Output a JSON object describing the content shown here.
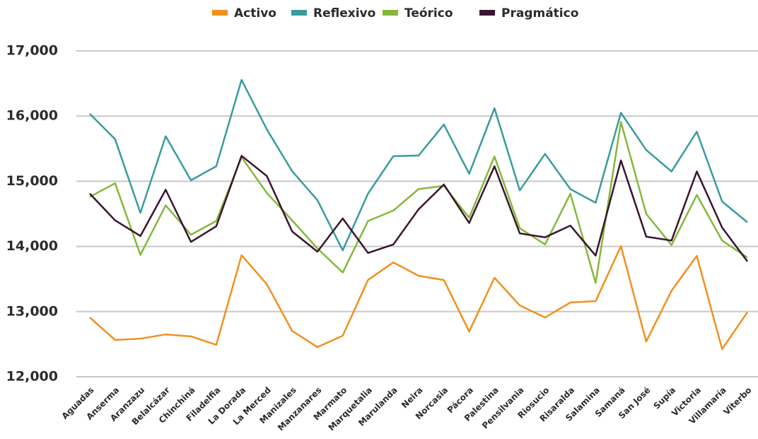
{
  "chart_data": {
    "type": "line",
    "categories": [
      "Aguadas",
      "Anserma",
      "Aranzazu",
      "Belalcázar",
      "Chinchiná",
      "Filadelfia",
      "La Dorada",
      "La Merced",
      "Manizales",
      "Manzanares",
      "Marmato",
      "Marquetalia",
      "Marulanda",
      "Neira",
      "Norcasia",
      "Pácora",
      "Palestina",
      "Pensilvania",
      "Riosucio",
      "Risaralda",
      "Salamina",
      "Samaná",
      "San José",
      "Supía",
      "Victoria",
      "Villamaría",
      "Viterbo"
    ],
    "series": [
      {
        "name": "Activo",
        "color": "#f0901e",
        "values": [
          12910,
          12565,
          12585,
          12650,
          12620,
          12490,
          13865,
          13420,
          12705,
          12455,
          12630,
          13485,
          13755,
          13550,
          13485,
          12695,
          13520,
          13095,
          12910,
          13140,
          13160,
          14005,
          12540,
          13320,
          13855,
          12425,
          12990
        ]
      },
      {
        "name": "Reflexivo",
        "color": "#3a9b9e",
        "values": [
          16035,
          15645,
          14515,
          15690,
          15015,
          15230,
          16555,
          15795,
          15155,
          14710,
          13940,
          14810,
          15385,
          15395,
          15870,
          15115,
          16120,
          14860,
          15420,
          14880,
          14670,
          16050,
          15480,
          15150,
          15760,
          14690,
          14370
        ]
      },
      {
        "name": "Teórico",
        "color": "#84b83a",
        "values": [
          14760,
          14970,
          13870,
          14630,
          14180,
          14390,
          15370,
          14820,
          14400,
          13970,
          13600,
          14390,
          14550,
          14880,
          14930,
          14440,
          15380,
          14280,
          14030,
          14810,
          13440,
          15910,
          14500,
          14020,
          14790,
          14090,
          13830
        ]
      },
      {
        "name": "Pragmático",
        "color": "#3a1530",
        "values": [
          14810,
          14400,
          14160,
          14870,
          14070,
          14310,
          15390,
          15080,
          14230,
          13920,
          14430,
          13900,
          14030,
          14570,
          14950,
          14360,
          15230,
          14200,
          14140,
          14320,
          13860,
          15320,
          14150,
          14090,
          15150,
          14290,
          13770
        ]
      }
    ],
    "ylim": [
      12000,
      17000
    ],
    "yticks": [
      {
        "value": 12000,
        "label": "12,000"
      },
      {
        "value": 13000,
        "label": "13,000"
      },
      {
        "value": 14000,
        "label": "14,000"
      },
      {
        "value": 15000,
        "label": "15,000"
      },
      {
        "value": 16000,
        "label": "16,000"
      },
      {
        "value": 17000,
        "label": "17,000"
      }
    ],
    "grid": true,
    "legend": "top"
  }
}
